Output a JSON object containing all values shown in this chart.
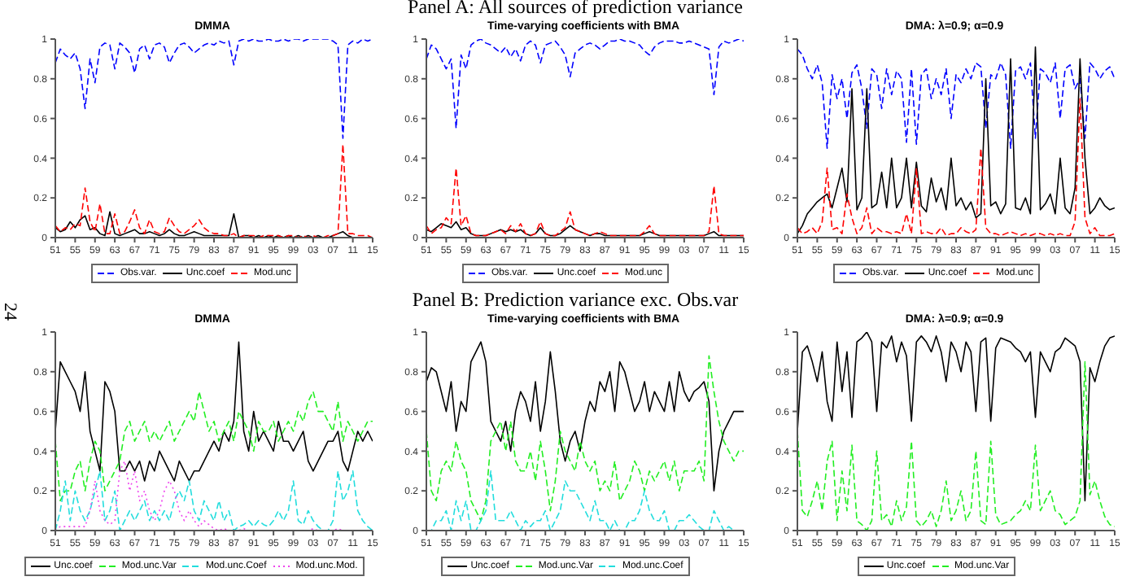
{
  "chart_data": [
    {
      "type": "line",
      "title": "DMMA",
      "legend": "bottom",
      "xlim": [
        1951,
        2015
      ],
      "ylim": [
        0,
        1
      ],
      "yticks": [
        0,
        0.2,
        0.4,
        0.6,
        0.8,
        1
      ],
      "xticks": [
        {
          "value": 1951,
          "label": "51"
        },
        {
          "value": 1955,
          "label": "55"
        },
        {
          "value": 1959,
          "label": "59"
        },
        {
          "value": 1963,
          "label": "63"
        },
        {
          "value": 1967,
          "label": "67"
        },
        {
          "value": 1971,
          "label": "71"
        },
        {
          "value": 1975,
          "label": "75"
        },
        {
          "value": 1979,
          "label": "79"
        },
        {
          "value": 1983,
          "label": "83"
        },
        {
          "value": 1987,
          "label": "87"
        },
        {
          "value": 1991,
          "label": "91"
        },
        {
          "value": 1995,
          "label": "95"
        },
        {
          "value": 1999,
          "label": "99"
        },
        {
          "value": 2003,
          "label": "03"
        },
        {
          "value": 2007,
          "label": "07"
        },
        {
          "value": 2011,
          "label": "11"
        },
        {
          "value": 2015,
          "label": "15"
        }
      ],
      "x": [
        1951,
        1952,
        1953,
        1954,
        1955,
        1956,
        1957,
        1958,
        1959,
        1960,
        1961,
        1962,
        1963,
        1964,
        1965,
        1966,
        1967,
        1968,
        1969,
        1970,
        1971,
        1972,
        1973,
        1974,
        1975,
        1976,
        1977,
        1978,
        1979,
        1980,
        1981,
        1982,
        1983,
        1984,
        1985,
        1986,
        1987,
        1988,
        1989,
        1990,
        1991,
        1992,
        1993,
        1994,
        1995,
        1996,
        1997,
        1998,
        1999,
        2000,
        2001,
        2002,
        2003,
        2004,
        2005,
        2006,
        2007,
        2008,
        2009,
        2010,
        2011,
        2012,
        2013,
        2014,
        2015
      ],
      "series": [
        {
          "name": "Obs.var.",
          "color": "#0000ff",
          "line_style": "dashed",
          "values": [
            0.88,
            0.95,
            0.92,
            0.9,
            0.93,
            0.85,
            0.65,
            0.9,
            0.78,
            0.96,
            0.98,
            0.97,
            0.85,
            0.98,
            0.96,
            0.93,
            0.83,
            0.95,
            0.97,
            0.9,
            0.97,
            0.98,
            0.96,
            0.88,
            0.93,
            0.97,
            0.98,
            0.96,
            0.93,
            0.95,
            0.97,
            0.98,
            0.97,
            0.99,
            0.98,
            0.99,
            0.87,
            0.99,
            1,
            0.99,
            1,
            0.99,
            0.99,
            1,
            0.99,
            0.99,
            1,
            0.99,
            1,
            1,
            0.99,
            1,
            1,
            1,
            1,
            1,
            0.99,
            0.97,
            0.5,
            0.97,
            0.99,
            0.98,
            1,
            0.99,
            1
          ]
        },
        {
          "name": "Unc.coef",
          "color": "#000000",
          "line_style": "solid",
          "values": [
            0.05,
            0.03,
            0.04,
            0.08,
            0.05,
            0.09,
            0.11,
            0.04,
            0.05,
            0.02,
            0.01,
            0.13,
            0.02,
            0.01,
            0.02,
            0.03,
            0.04,
            0.02,
            0.02,
            0.03,
            0.02,
            0.01,
            0.02,
            0.04,
            0.02,
            0.01,
            0.01,
            0.02,
            0.03,
            0.02,
            0.01,
            0.01,
            0.01,
            0.01,
            0.01,
            0.01,
            0.12,
            0,
            0.01,
            0.01,
            0,
            0.01,
            0,
            0.01,
            0,
            0.01,
            0,
            0.01,
            0,
            0.01,
            0,
            0.01,
            0,
            0.01,
            0,
            0,
            0.01,
            0.02,
            0.03,
            0.01,
            0,
            0,
            0,
            0,
            0
          ]
        },
        {
          "name": "Mod.unc",
          "color": "#ff0000",
          "line_style": "dashed",
          "values": [
            0.06,
            0.03,
            0.05,
            0.04,
            0.07,
            0.06,
            0.25,
            0.08,
            0.03,
            0.17,
            0.02,
            0.02,
            0.12,
            0.02,
            0.03,
            0.08,
            0.14,
            0.05,
            0.02,
            0.09,
            0.03,
            0.02,
            0.03,
            0.1,
            0.06,
            0.03,
            0.02,
            0.04,
            0.06,
            0.09,
            0.05,
            0.03,
            0.02,
            0.02,
            0.01,
            0.01,
            0.02,
            0,
            0.01,
            0.01,
            0.01,
            0,
            0.01,
            0.01,
            0.01,
            0.01,
            0,
            0.01,
            0.01,
            0,
            0.01,
            0,
            0.01,
            0,
            0,
            0.01,
            0.01,
            0.02,
            0.47,
            0.02,
            0.02,
            0.01,
            0.01,
            0.01,
            0
          ]
        }
      ]
    },
    {
      "type": "line",
      "title": "Time-varying coefficients with BMA",
      "annotations": [
        "Panel A: All sources of prediction variance"
      ],
      "legend": "bottom",
      "xlim": [
        1951,
        2015
      ],
      "ylim": [
        0,
        1
      ],
      "yticks": [
        0,
        0.2,
        0.4,
        0.6,
        0.8,
        1
      ],
      "xticks": [
        {
          "value": 1951,
          "label": "51"
        },
        {
          "value": 1955,
          "label": "55"
        },
        {
          "value": 1959,
          "label": "59"
        },
        {
          "value": 1963,
          "label": "63"
        },
        {
          "value": 1967,
          "label": "67"
        },
        {
          "value": 1971,
          "label": "71"
        },
        {
          "value": 1975,
          "label": "75"
        },
        {
          "value": 1979,
          "label": "79"
        },
        {
          "value": 1983,
          "label": "83"
        },
        {
          "value": 1987,
          "label": "87"
        },
        {
          "value": 1991,
          "label": "91"
        },
        {
          "value": 1995,
          "label": "95"
        },
        {
          "value": 1999,
          "label": "99"
        },
        {
          "value": 2003,
          "label": "03"
        },
        {
          "value": 2007,
          "label": "07"
        },
        {
          "value": 2011,
          "label": "11"
        },
        {
          "value": 2015,
          "label": "15"
        }
      ],
      "x": [
        1951,
        1952,
        1953,
        1954,
        1955,
        1956,
        1957,
        1958,
        1959,
        1960,
        1961,
        1962,
        1963,
        1964,
        1965,
        1966,
        1967,
        1968,
        1969,
        1970,
        1971,
        1972,
        1973,
        1974,
        1975,
        1976,
        1977,
        1978,
        1979,
        1980,
        1981,
        1982,
        1983,
        1984,
        1985,
        1986,
        1987,
        1988,
        1989,
        1990,
        1991,
        1992,
        1993,
        1994,
        1995,
        1996,
        1997,
        1998,
        1999,
        2000,
        2001,
        2002,
        2003,
        2004,
        2005,
        2006,
        2007,
        2008,
        2009,
        2010,
        2011,
        2012,
        2013,
        2014,
        2015
      ],
      "series": [
        {
          "name": "Obs.var.",
          "color": "#0000ff",
          "line_style": "dashed",
          "values": [
            0.9,
            0.97,
            0.95,
            0.9,
            0.85,
            0.9,
            0.55,
            0.92,
            0.85,
            0.97,
            0.99,
            1,
            0.98,
            0.97,
            0.95,
            0.93,
            0.96,
            0.91,
            0.95,
            0.89,
            0.97,
            0.99,
            0.97,
            0.88,
            0.97,
            0.98,
            0.99,
            0.96,
            0.92,
            0.81,
            0.93,
            0.95,
            0.97,
            0.98,
            0.97,
            0.95,
            0.97,
            0.99,
            0.99,
            1,
            0.99,
            0.99,
            0.98,
            0.97,
            0.94,
            0.92,
            0.96,
            0.98,
            0.99,
            0.99,
            0.99,
            0.98,
            0.98,
            0.99,
            0.98,
            0.97,
            0.96,
            0.95,
            0.72,
            0.96,
            0.99,
            0.98,
            0.99,
            1,
            0.99
          ]
        },
        {
          "name": "Unc.coef",
          "color": "#000000",
          "line_style": "solid",
          "values": [
            0.04,
            0.03,
            0.05,
            0.07,
            0.06,
            0.05,
            0.08,
            0.04,
            0.05,
            0.02,
            0.01,
            0.01,
            0.01,
            0.02,
            0.03,
            0.04,
            0.03,
            0.04,
            0.03,
            0.04,
            0.02,
            0.01,
            0.02,
            0.05,
            0.02,
            0.01,
            0.01,
            0.02,
            0.04,
            0.06,
            0.04,
            0.03,
            0.02,
            0.01,
            0.02,
            0.02,
            0.01,
            0.01,
            0.01,
            0.01,
            0.01,
            0.01,
            0.01,
            0.01,
            0.02,
            0.03,
            0.02,
            0.01,
            0.01,
            0.01,
            0.01,
            0.01,
            0.01,
            0.01,
            0.01,
            0.01,
            0.01,
            0.02,
            0.03,
            0.01,
            0.01,
            0.01,
            0.01,
            0.01,
            0.01
          ]
        },
        {
          "name": "Mod.unc",
          "color": "#ff0000",
          "line_style": "dashed",
          "values": [
            0.06,
            0.02,
            0.04,
            0.05,
            0.1,
            0.07,
            0.35,
            0.06,
            0.11,
            0.02,
            0.01,
            0.01,
            0.01,
            0.02,
            0.03,
            0.04,
            0.02,
            0.06,
            0.03,
            0.07,
            0.02,
            0.01,
            0.02,
            0.08,
            0.02,
            0.01,
            0.01,
            0.03,
            0.05,
            0.13,
            0.04,
            0.03,
            0.02,
            0.01,
            0.02,
            0.03,
            0.02,
            0.01,
            0.01,
            0.01,
            0.01,
            0.01,
            0.01,
            0.01,
            0.03,
            0.06,
            0.02,
            0.01,
            0.01,
            0.01,
            0.01,
            0.01,
            0.01,
            0.01,
            0.01,
            0.01,
            0.01,
            0.03,
            0.26,
            0.02,
            0.01,
            0.01,
            0.01,
            0.01,
            0.01
          ]
        }
      ]
    },
    {
      "type": "line",
      "title": "DMA: λ=0.9; α=0.9",
      "legend": "bottom",
      "xlim": [
        1951,
        2015
      ],
      "ylim": [
        0,
        1
      ],
      "yticks": [
        0,
        0.2,
        0.4,
        0.6,
        0.8,
        1
      ],
      "xticks": [
        {
          "value": 1951,
          "label": "51"
        },
        {
          "value": 1955,
          "label": "55"
        },
        {
          "value": 1959,
          "label": "59"
        },
        {
          "value": 1963,
          "label": "63"
        },
        {
          "value": 1967,
          "label": "67"
        },
        {
          "value": 1971,
          "label": "71"
        },
        {
          "value": 1975,
          "label": "75"
        },
        {
          "value": 1979,
          "label": "79"
        },
        {
          "value": 1983,
          "label": "83"
        },
        {
          "value": 1987,
          "label": "87"
        },
        {
          "value": 1991,
          "label": "91"
        },
        {
          "value": 1995,
          "label": "95"
        },
        {
          "value": 1999,
          "label": "99"
        },
        {
          "value": 2003,
          "label": "03"
        },
        {
          "value": 2007,
          "label": "07"
        },
        {
          "value": 2011,
          "label": "11"
        },
        {
          "value": 2015,
          "label": "15"
        }
      ],
      "x": [
        1951,
        1952,
        1953,
        1954,
        1955,
        1956,
        1957,
        1958,
        1959,
        1960,
        1961,
        1962,
        1963,
        1964,
        1965,
        1966,
        1967,
        1968,
        1969,
        1970,
        1971,
        1972,
        1973,
        1974,
        1975,
        1976,
        1977,
        1978,
        1979,
        1980,
        1981,
        1982,
        1983,
        1984,
        1985,
        1986,
        1987,
        1988,
        1989,
        1990,
        1991,
        1992,
        1993,
        1994,
        1995,
        1996,
        1997,
        1998,
        1999,
        2000,
        2001,
        2002,
        2003,
        2004,
        2005,
        2006,
        2007,
        2008,
        2009,
        2010,
        2011,
        2012,
        2013,
        2014,
        2015
      ],
      "series": [
        {
          "name": "Obs.var.",
          "color": "#0000ff",
          "line_style": "dashed",
          "values": [
            0.95,
            0.92,
            0.85,
            0.8,
            0.87,
            0.78,
            0.45,
            0.82,
            0.7,
            0.8,
            0.6,
            0.83,
            0.87,
            0.75,
            0.55,
            0.85,
            0.82,
            0.65,
            0.85,
            0.72,
            0.84,
            0.8,
            0.48,
            0.85,
            0.47,
            0.82,
            0.85,
            0.7,
            0.8,
            0.72,
            0.85,
            0.6,
            0.82,
            0.78,
            0.85,
            0.8,
            0.88,
            0.86,
            0.55,
            0.82,
            0.8,
            0.88,
            0.82,
            0.45,
            0.84,
            0.86,
            0.8,
            0.88,
            0.5,
            0.85,
            0.83,
            0.78,
            0.88,
            0.6,
            0.85,
            0.87,
            0.75,
            0.8,
            0.5,
            0.88,
            0.85,
            0.8,
            0.84,
            0.86,
            0.8
          ]
        },
        {
          "name": "Unc.coef",
          "color": "#000000",
          "line_style": "solid",
          "values": [
            0.02,
            0.06,
            0.12,
            0.15,
            0.18,
            0.2,
            0.22,
            0.15,
            0.25,
            0.35,
            0.18,
            0.75,
            0.14,
            0.2,
            0.75,
            0.15,
            0.17,
            0.33,
            0.15,
            0.4,
            0.15,
            0.2,
            0.4,
            0.15,
            0.38,
            0.16,
            0.13,
            0.3,
            0.18,
            0.25,
            0.14,
            0.4,
            0.16,
            0.2,
            0.14,
            0.18,
            0.1,
            0.12,
            0.8,
            0.16,
            0.18,
            0.12,
            0.17,
            0.9,
            0.15,
            0.14,
            0.2,
            0.12,
            0.96,
            0.14,
            0.17,
            0.22,
            0.12,
            0.4,
            0.15,
            0.12,
            0.25,
            0.9,
            0.4,
            0.12,
            0.15,
            0.2,
            0.16,
            0.14,
            0.15
          ]
        },
        {
          "name": "Mod.unc",
          "color": "#ff0000",
          "line_style": "dashed",
          "values": [
            0.05,
            0.02,
            0.03,
            0.05,
            0.02,
            0.08,
            0.35,
            0.04,
            0.05,
            0.02,
            0.22,
            0.1,
            0.02,
            0.05,
            0.15,
            0.02,
            0.05,
            0.03,
            0.03,
            0.02,
            0.03,
            0.02,
            0.12,
            0.02,
            0.35,
            0.02,
            0.03,
            0.02,
            0.02,
            0.05,
            0.01,
            0.02,
            0.02,
            0.05,
            0.03,
            0.02,
            0.04,
            0.45,
            0.05,
            0.02,
            0.02,
            0.01,
            0.02,
            0.03,
            0.02,
            0.01,
            0.02,
            0.01,
            0.02,
            0.02,
            0.01,
            0.02,
            0.01,
            0.02,
            0.01,
            0.01,
            0.08,
            0.7,
            0.1,
            0.02,
            0.05,
            0.01,
            0.01,
            0.01,
            0.02
          ]
        }
      ]
    },
    {
      "type": "line",
      "title": "DMMA",
      "annotations": [
        "24"
      ],
      "legend": "bottom",
      "xlim": [
        1951,
        2015
      ],
      "ylim": [
        0,
        1
      ],
      "yticks": [
        0,
        0.2,
        0.4,
        0.6,
        0.8,
        1
      ],
      "xticks": [
        {
          "value": 1951,
          "label": "51"
        },
        {
          "value": 1955,
          "label": "55"
        },
        {
          "value": 1959,
          "label": "59"
        },
        {
          "value": 1963,
          "label": "63"
        },
        {
          "value": 1967,
          "label": "67"
        },
        {
          "value": 1971,
          "label": "71"
        },
        {
          "value": 1975,
          "label": "75"
        },
        {
          "value": 1979,
          "label": "79"
        },
        {
          "value": 1983,
          "label": "83"
        },
        {
          "value": 1987,
          "label": "87"
        },
        {
          "value": 1991,
          "label": "91"
        },
        {
          "value": 1995,
          "label": "95"
        },
        {
          "value": 1999,
          "label": "99"
        },
        {
          "value": 2003,
          "label": "03"
        },
        {
          "value": 2007,
          "label": "07"
        },
        {
          "value": 2011,
          "label": "11"
        },
        {
          "value": 2015,
          "label": "15"
        }
      ],
      "x": [
        1951,
        1952,
        1953,
        1954,
        1955,
        1956,
        1957,
        1958,
        1959,
        1960,
        1961,
        1962,
        1963,
        1964,
        1965,
        1966,
        1967,
        1968,
        1969,
        1970,
        1971,
        1972,
        1973,
        1974,
        1975,
        1976,
        1977,
        1978,
        1979,
        1980,
        1981,
        1982,
        1983,
        1984,
        1985,
        1986,
        1987,
        1988,
        1989,
        1990,
        1991,
        1992,
        1993,
        1994,
        1995,
        1996,
        1997,
        1998,
        1999,
        2000,
        2001,
        2002,
        2003,
        2004,
        2005,
        2006,
        2007,
        2008,
        2009,
        2010,
        2011,
        2012,
        2013,
        2014,
        2015
      ],
      "series": [
        {
          "name": "Unc.coef",
          "color": "#000000",
          "line_style": "solid",
          "values": [
            0.5,
            0.85,
            0.8,
            0.75,
            0.7,
            0.6,
            0.8,
            0.5,
            0.4,
            0.3,
            0.75,
            0.7,
            0.6,
            0.3,
            0.3,
            0.35,
            0.3,
            0.35,
            0.25,
            0.35,
            0.3,
            0.4,
            0.35,
            0.3,
            0.25,
            0.35,
            0.3,
            0.25,
            0.3,
            0.3,
            0.35,
            0.4,
            0.45,
            0.4,
            0.5,
            0.45,
            0.55,
            0.95,
            0.5,
            0.4,
            0.6,
            0.45,
            0.5,
            0.45,
            0.4,
            0.55,
            0.45,
            0.45,
            0.4,
            0.45,
            0.5,
            0.35,
            0.3,
            0.35,
            0.4,
            0.45,
            0.45,
            0.5,
            0.35,
            0.3,
            0.4,
            0.5,
            0.45,
            0.5,
            0.45
          ]
        },
        {
          "name": "Mod.unc.Var",
          "color": "#22ee22",
          "line_style": "dashed",
          "values": [
            0.45,
            0.15,
            0.2,
            0.2,
            0.3,
            0.35,
            0.2,
            0.35,
            0.45,
            0.4,
            0.2,
            0.25,
            0.3,
            0.35,
            0.5,
            0.55,
            0.45,
            0.5,
            0.55,
            0.45,
            0.5,
            0.45,
            0.5,
            0.55,
            0.45,
            0.5,
            0.55,
            0.6,
            0.55,
            0.7,
            0.6,
            0.5,
            0.55,
            0.45,
            0.5,
            0.55,
            0.45,
            0.6,
            0.55,
            0.5,
            0.4,
            0.55,
            0.5,
            0.5,
            0.55,
            0.45,
            0.5,
            0.55,
            0.5,
            0.6,
            0.55,
            0.65,
            0.7,
            0.6,
            0.6,
            0.55,
            0.5,
            0.65,
            0.45,
            0.55,
            0.5,
            0.45,
            0.5,
            0.55,
            0.55
          ]
        },
        {
          "name": "Mod.unc.Coef",
          "color": "#22dddd",
          "line_style": "dashed",
          "values": [
            0,
            0.1,
            0.25,
            0.05,
            0.2,
            0.1,
            0.05,
            0.1,
            0.2,
            0.3,
            0.05,
            0.1,
            0.2,
            0,
            0.05,
            0.1,
            0.05,
            0.1,
            0.15,
            0.05,
            0.1,
            0.05,
            0.1,
            0.05,
            0.15,
            0.2,
            0.15,
            0.25,
            0.1,
            0.05,
            0.15,
            0.1,
            0.05,
            0.15,
            0.05,
            0.1,
            0,
            0.02,
            0.03,
            0.05,
            0.02,
            0.05,
            0.03,
            0.02,
            0.05,
            0.1,
            0.05,
            0.1,
            0.25,
            0.05,
            0.03,
            0.1,
            0.05,
            0.02,
            0,
            0,
            0.05,
            0.3,
            0.15,
            0.2,
            0.3,
            0.1,
            0.05,
            0.02,
            0
          ]
        },
        {
          "name": "Mod.unc.Mod.",
          "color": "#ee44ee",
          "line_style": "dotted",
          "values": [
            0,
            0.02,
            0.02,
            0.02,
            0.02,
            0.02,
            0.02,
            0.1,
            0.25,
            0.1,
            0.05,
            0.03,
            0.05,
            0.3,
            0.35,
            0.2,
            0.3,
            0.15,
            0.2,
            0.1,
            0.05,
            0.1,
            0.2,
            0.25,
            0.2,
            0.1,
            0.05,
            0.1,
            0.05,
            0.02,
            0.05,
            0.03,
            0.01,
            0,
            0.01,
            0,
            0,
            0,
            0.01,
            0,
            0,
            0,
            0,
            0,
            0,
            0,
            0,
            0,
            0,
            0,
            0,
            0,
            0.01,
            0,
            0,
            0,
            0,
            0.01,
            0,
            0,
            0,
            null,
            null,
            null,
            null
          ]
        }
      ]
    },
    {
      "type": "line",
      "title": "Time-varying coefficients with BMA",
      "annotations": [
        "Panel B: Prediction variance exc. Obs.var"
      ],
      "legend": "bottom",
      "xlim": [
        1951,
        2015
      ],
      "ylim": [
        0,
        1
      ],
      "yticks": [
        0,
        0.2,
        0.4,
        0.6,
        0.8,
        1
      ],
      "xticks": [
        {
          "value": 1951,
          "label": "51"
        },
        {
          "value": 1955,
          "label": "55"
        },
        {
          "value": 1959,
          "label": "59"
        },
        {
          "value": 1963,
          "label": "63"
        },
        {
          "value": 1967,
          "label": "67"
        },
        {
          "value": 1971,
          "label": "71"
        },
        {
          "value": 1975,
          "label": "75"
        },
        {
          "value": 1979,
          "label": "79"
        },
        {
          "value": 1983,
          "label": "83"
        },
        {
          "value": 1987,
          "label": "87"
        },
        {
          "value": 1991,
          "label": "91"
        },
        {
          "value": 1995,
          "label": "95"
        },
        {
          "value": 1999,
          "label": "99"
        },
        {
          "value": 2003,
          "label": "03"
        },
        {
          "value": 2007,
          "label": "07"
        },
        {
          "value": 2011,
          "label": "11"
        },
        {
          "value": 2015,
          "label": "15"
        }
      ],
      "x": [
        1951,
        1952,
        1953,
        1954,
        1955,
        1956,
        1957,
        1958,
        1959,
        1960,
        1961,
        1962,
        1963,
        1964,
        1965,
        1966,
        1967,
        1968,
        1969,
        1970,
        1971,
        1972,
        1973,
        1974,
        1975,
        1976,
        1977,
        1978,
        1979,
        1980,
        1981,
        1982,
        1983,
        1984,
        1985,
        1986,
        1987,
        1988,
        1989,
        1990,
        1991,
        1992,
        1993,
        1994,
        1995,
        1996,
        1997,
        1998,
        1999,
        2000,
        2001,
        2002,
        2003,
        2004,
        2005,
        2006,
        2007,
        2008,
        2009,
        2010,
        2011,
        2012,
        2013,
        2014,
        2015
      ],
      "series": [
        {
          "name": "Unc.coef",
          "color": "#000000",
          "line_style": "solid",
          "values": [
            0.75,
            0.82,
            0.8,
            0.7,
            0.6,
            0.75,
            0.5,
            0.65,
            0.6,
            0.85,
            0.9,
            0.95,
            0.85,
            0.55,
            0.5,
            0.45,
            0.55,
            0.4,
            0.6,
            0.7,
            0.65,
            0.55,
            0.75,
            0.5,
            0.65,
            0.9,
            0.7,
            0.45,
            0.35,
            0.45,
            0.5,
            0.4,
            0.55,
            0.65,
            0.6,
            0.75,
            0.7,
            0.8,
            0.6,
            0.85,
            0.8,
            0.7,
            0.6,
            0.65,
            0.75,
            0.6,
            0.7,
            0.65,
            0.6,
            0.75,
            0.6,
            0.8,
            0.7,
            0.65,
            0.7,
            0.72,
            0.75,
            0.65,
            0.2,
            0.4,
            0.5,
            0.55,
            0.6,
            0.6,
            0.6
          ]
        },
        {
          "name": "Mod.unc.Var",
          "color": "#22ee22",
          "line_style": "dashed",
          "values": [
            0.5,
            0.2,
            0.15,
            0.3,
            0.35,
            0.3,
            0.45,
            0.35,
            0.3,
            0.15,
            0.1,
            0.05,
            0.15,
            0.45,
            0.5,
            0.55,
            0.4,
            0.55,
            0.35,
            0.3,
            0.3,
            0.4,
            0.25,
            0.45,
            0.3,
            0.1,
            0.25,
            0.5,
            0.4,
            0.35,
            0.3,
            0.45,
            0.35,
            0.3,
            0.35,
            0.2,
            0.25,
            0.2,
            0.35,
            0.15,
            0.2,
            0.25,
            0.35,
            0.3,
            0.2,
            0.3,
            0.25,
            0.3,
            0.35,
            0.25,
            0.35,
            0.2,
            0.3,
            0.3,
            0.3,
            0.35,
            0.25,
            0.88,
            0.7,
            0.55,
            0.45,
            0.4,
            0.35,
            0.4,
            0.4
          ]
        },
        {
          "name": "Mod.unc.Coef",
          "color": "#22dddd",
          "line_style": "dashed",
          "values": [
            0,
            0,
            0.05,
            0.05,
            0.1,
            0,
            0.15,
            0.05,
            0.15,
            0,
            0,
            0.05,
            0.1,
            0.3,
            0.05,
            0.05,
            0.05,
            0.1,
            0.05,
            0,
            0.05,
            0.02,
            0.05,
            0.05,
            0.1,
            0,
            0.05,
            0.1,
            0.25,
            0.2,
            0.2,
            0.15,
            0.1,
            0.05,
            0.15,
            0.05,
            0.05,
            0,
            0.05,
            0,
            0,
            0.05,
            0.05,
            0.1,
            0.2,
            0.1,
            0.05,
            0.05,
            0.1,
            0,
            0,
            0.05,
            0.05,
            0.08,
            0.05,
            0.02,
            0,
            0,
            0.1,
            0.05,
            0,
            0.02,
            0,
            0,
            0
          ]
        }
      ]
    },
    {
      "type": "line",
      "title": "DMA: λ=0.9; α=0.9",
      "legend": "bottom",
      "xlim": [
        1951,
        2015
      ],
      "ylim": [
        0,
        1
      ],
      "yticks": [
        0,
        0.2,
        0.4,
        0.6,
        0.8,
        1
      ],
      "xticks": [
        {
          "value": 1951,
          "label": "51"
        },
        {
          "value": 1955,
          "label": "55"
        },
        {
          "value": 1959,
          "label": "59"
        },
        {
          "value": 1963,
          "label": "63"
        },
        {
          "value": 1967,
          "label": "67"
        },
        {
          "value": 1971,
          "label": "71"
        },
        {
          "value": 1975,
          "label": "75"
        },
        {
          "value": 1979,
          "label": "79"
        },
        {
          "value": 1983,
          "label": "83"
        },
        {
          "value": 1987,
          "label": "87"
        },
        {
          "value": 1991,
          "label": "91"
        },
        {
          "value": 1995,
          "label": "95"
        },
        {
          "value": 1999,
          "label": "99"
        },
        {
          "value": 2003,
          "label": "03"
        },
        {
          "value": 2007,
          "label": "07"
        },
        {
          "value": 2011,
          "label": "11"
        },
        {
          "value": 2015,
          "label": "15"
        }
      ],
      "x": [
        1951,
        1952,
        1953,
        1954,
        1955,
        1956,
        1957,
        1958,
        1959,
        1960,
        1961,
        1962,
        1963,
        1964,
        1965,
        1966,
        1967,
        1968,
        1969,
        1970,
        1971,
        1972,
        1973,
        1974,
        1975,
        1976,
        1977,
        1978,
        1979,
        1980,
        1981,
        1982,
        1983,
        1984,
        1985,
        1986,
        1987,
        1988,
        1989,
        1990,
        1991,
        1992,
        1993,
        1994,
        1995,
        1996,
        1997,
        1998,
        1999,
        2000,
        2001,
        2002,
        2003,
        2004,
        2005,
        2006,
        2007,
        2008,
        2009,
        2010,
        2011,
        2012,
        2013,
        2014,
        2015
      ],
      "series": [
        {
          "name": "Unc.coef",
          "color": "#000000",
          "line_style": "solid",
          "values": [
            0.5,
            0.9,
            0.93,
            0.85,
            0.75,
            0.9,
            0.65,
            0.55,
            0.95,
            0.7,
            0.9,
            0.57,
            0.95,
            0.97,
            1,
            0.95,
            0.6,
            0.95,
            0.92,
            0.98,
            0.85,
            0.95,
            0.88,
            0.55,
            0.95,
            0.98,
            0.95,
            0.9,
            0.98,
            0.9,
            0.75,
            0.95,
            0.9,
            0.8,
            0.95,
            0.9,
            0.6,
            0.95,
            0.97,
            0.55,
            0.92,
            0.97,
            0.96,
            0.95,
            0.92,
            0.9,
            0.85,
            0.9,
            0.57,
            0.9,
            0.85,
            0.8,
            0.9,
            0.92,
            0.97,
            0.95,
            0.93,
            0.85,
            0.15,
            0.82,
            0.75,
            0.85,
            0.93,
            0.97,
            0.98
          ]
        },
        {
          "name": "Mod.unc.Var",
          "color": "#22ee22",
          "line_style": "dashed",
          "values": [
            0.5,
            0.1,
            0.07,
            0.15,
            0.25,
            0.1,
            0.35,
            0.45,
            0.05,
            0.3,
            0.1,
            0.43,
            0.05,
            0.03,
            0,
            0.05,
            0.4,
            0.05,
            0.08,
            0.02,
            0.15,
            0.05,
            0.12,
            0.45,
            0.05,
            0.02,
            0.05,
            0.1,
            0.02,
            0.1,
            0.25,
            0.05,
            0.1,
            0.2,
            0.05,
            0.1,
            0.4,
            0.05,
            0.03,
            0.45,
            0.08,
            0.03,
            0.04,
            0.05,
            0.08,
            0.1,
            0.15,
            0.1,
            0.43,
            0.1,
            0.15,
            0.2,
            0.1,
            0.08,
            0.03,
            0.05,
            0.07,
            0.15,
            0.85,
            0.18,
            0.25,
            0.15,
            0.07,
            0.03,
            0.02
          ]
        }
      ]
    }
  ]
}
